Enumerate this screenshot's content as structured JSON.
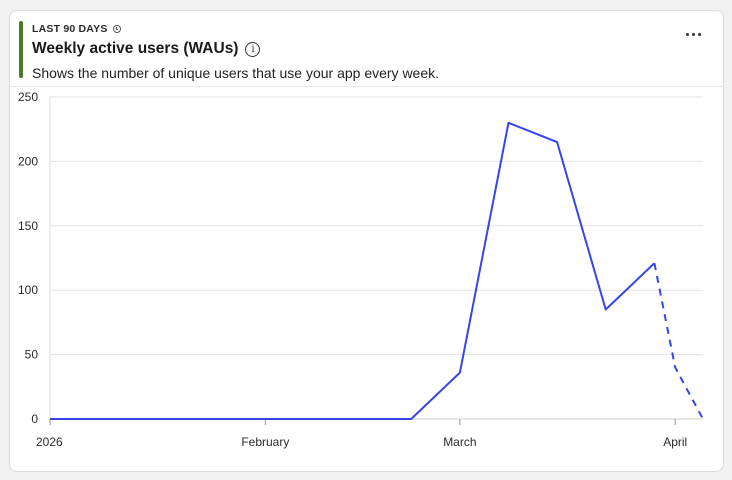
{
  "card": {
    "period": "LAST 90 DAYS",
    "title": "Weekly active users (WAUs)",
    "info_glyph": "i",
    "subtitle": "Shows the number of unique users that use your app every week."
  },
  "colors": {
    "accent": "#4a7a24",
    "series": "#3645e8",
    "grid": "#e3e3e3"
  },
  "icons": [
    "clock-icon",
    "info-icon",
    "more-horizontal-icon"
  ],
  "chart_data": {
    "type": "line",
    "y_ticks": [
      0,
      50,
      100,
      150,
      200,
      250
    ],
    "ylim": [
      0,
      250
    ],
    "xlim": [
      "2026-01-01",
      "2026-04-05"
    ],
    "x_ticks": [
      {
        "date": "2026-01-01",
        "label": "2026"
      },
      {
        "date": "2026-02-01",
        "label": "February"
      },
      {
        "date": "2026-03-01",
        "label": "March"
      },
      {
        "date": "2026-04-01",
        "label": "April"
      }
    ],
    "grid": true,
    "legend": "none",
    "series": [
      {
        "points": [
          {
            "x": "2026-01-01",
            "y": 0
          },
          {
            "x": "2026-02-22",
            "y": 0
          },
          {
            "x": "2026-03-01",
            "y": 36
          },
          {
            "x": "2026-03-08",
            "y": 230
          },
          {
            "x": "2026-03-15",
            "y": 215
          },
          {
            "x": "2026-03-22",
            "y": 85
          },
          {
            "x": "2026-03-29",
            "y": 121
          },
          {
            "x": "2026-04-01",
            "y": 40
          },
          {
            "x": "2026-04-05",
            "y": 0
          }
        ],
        "projected_from": "2026-03-29"
      }
    ]
  }
}
